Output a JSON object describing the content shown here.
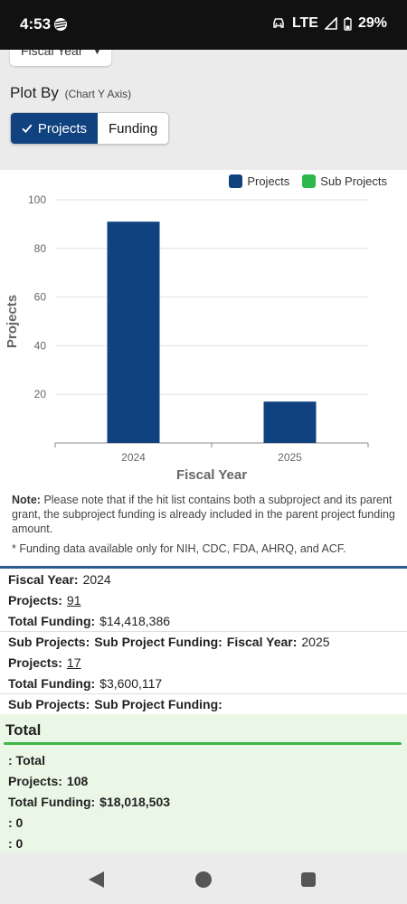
{
  "status": {
    "time": "4:53",
    "network": "LTE",
    "battery": "29%"
  },
  "controls": {
    "fiscal_year_select": "Fiscal Year",
    "plot_by_label": "Plot By",
    "plot_by_hint": "(Chart Y Axis)",
    "toggle_projects": "Projects",
    "toggle_funding": "Funding"
  },
  "chart_data": {
    "type": "bar",
    "categories": [
      "2024",
      "2025"
    ],
    "series": [
      {
        "name": "Projects",
        "color": "#10427f",
        "values": [
          91,
          17
        ]
      },
      {
        "name": "Sub Projects",
        "color": "#2db84b",
        "values": [
          0,
          0
        ]
      }
    ],
    "xlabel": "Fiscal Year",
    "ylabel": "Projects",
    "ylim": [
      0,
      100
    ],
    "yticks": [
      20,
      40,
      60,
      80,
      100
    ],
    "grid": true,
    "legend_position": "top-right"
  },
  "note": {
    "label": "Note:",
    "text": "Please note that if the hit list contains both a subproject and its parent grant, the subproject funding is already included in the parent project funding amount.",
    "footnote": "* Funding data available only for NIH, CDC, FDA, AHRQ, and ACF."
  },
  "rows": [
    {
      "fy_label": "Fiscal Year:",
      "fy_value": "2024",
      "projects_label": "Projects:",
      "projects_value": "91",
      "funding_label": "Total Funding:",
      "funding_value": "$14,418,386",
      "sub_projects_label": "Sub Projects:",
      "sub_funding_label": "Sub Project Funding:"
    },
    {
      "fy_label": "Fiscal Year:",
      "fy_value": "2025",
      "projects_label": "Projects:",
      "projects_value": "17",
      "funding_label": "Total Funding:",
      "funding_value": "$3,600,117",
      "sub_projects_label": "Sub Projects:",
      "sub_funding_label": "Sub Project Funding:"
    }
  ],
  "total": {
    "heading": "Total",
    "line1": ": Total",
    "projects_label": "Projects:",
    "projects_value": "108",
    "funding_label": "Total Funding:",
    "funding_value": "$18,018,503",
    "line4": ": 0",
    "line5": ": 0"
  },
  "colors": {
    "primary": "#10427f",
    "sub_projects": "#2db84b",
    "total_bg": "#eaf7e6"
  },
  "nav_icons": [
    "back-icon",
    "home-icon",
    "recents-icon"
  ]
}
